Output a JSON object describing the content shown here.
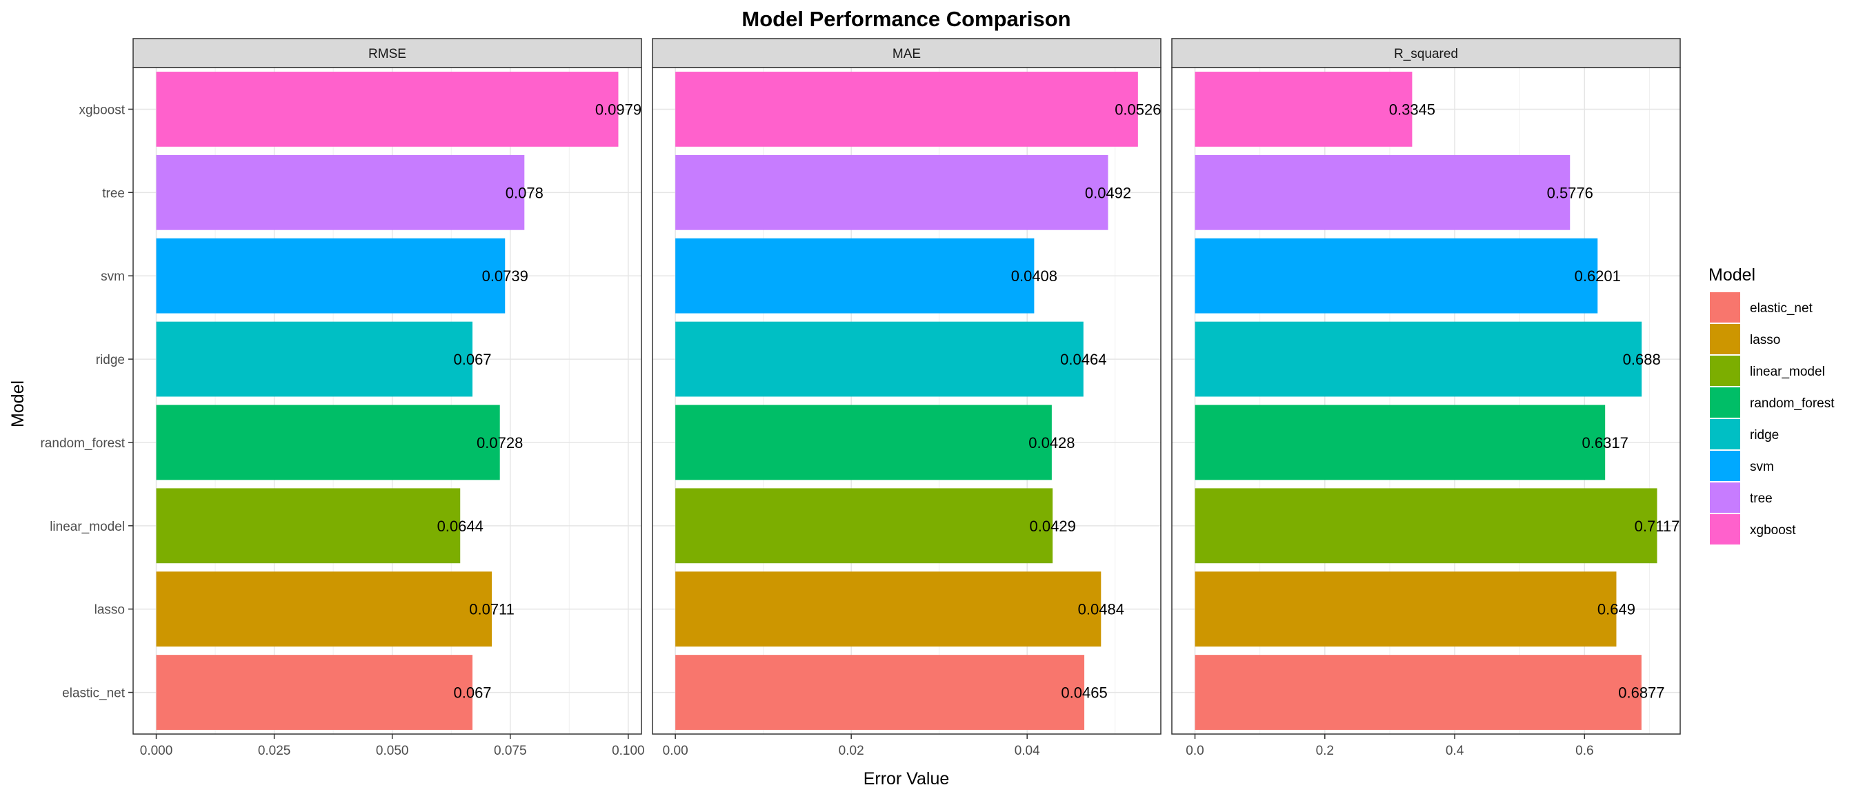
{
  "chart_data": {
    "type": "bar",
    "orientation": "horizontal",
    "title": "Model Performance Comparison",
    "xlabel": "Error Value",
    "ylabel": "Model",
    "grid": true,
    "legend_position": "right",
    "legend_title": "Model",
    "categories": [
      "elastic_net",
      "lasso",
      "linear_model",
      "random_forest",
      "ridge",
      "svm",
      "tree",
      "xgboost"
    ],
    "colors": {
      "elastic_net": "#F8766D",
      "lasso": "#CD9600",
      "linear_model": "#7CAE00",
      "random_forest": "#00BE67",
      "ridge": "#00BFC4",
      "svm": "#00A9FF",
      "tree": "#C77CFF",
      "xgboost": "#FF61CC"
    },
    "panels": [
      {
        "name": "RMSE",
        "xlim": [
          -0.0049,
          0.1028
        ],
        "ticks": [
          0.0,
          0.025,
          0.05,
          0.075,
          0.1
        ],
        "tick_labels": [
          "0.000",
          "0.025",
          "0.050",
          "0.075",
          "0.100"
        ],
        "values": [
          0.067,
          0.0711,
          0.0644,
          0.0728,
          0.067,
          0.0739,
          0.078,
          0.0979
        ],
        "value_labels": [
          "0.067",
          "0.0711",
          "0.0644",
          "0.0728",
          "0.067",
          "0.0739",
          "0.078",
          "0.0979"
        ]
      },
      {
        "name": "MAE",
        "xlim": [
          -0.0026,
          0.0552
        ],
        "ticks": [
          0.0,
          0.02,
          0.04
        ],
        "tick_labels": [
          "0.00",
          "0.02",
          "0.04"
        ],
        "values": [
          0.0465,
          0.0484,
          0.0429,
          0.0428,
          0.0464,
          0.0408,
          0.0492,
          0.0526
        ],
        "value_labels": [
          "0.0465",
          "0.0484",
          "0.0429",
          "0.0428",
          "0.0464",
          "0.0408",
          "0.0492",
          "0.0526"
        ]
      },
      {
        "name": "R_squared",
        "xlim": [
          -0.0356,
          0.7473
        ],
        "ticks": [
          0.0,
          0.2,
          0.4,
          0.6
        ],
        "tick_labels": [
          "0.0",
          "0.2",
          "0.4",
          "0.6"
        ],
        "values": [
          0.6877,
          0.649,
          0.7117,
          0.6317,
          0.688,
          0.6201,
          0.5776,
          0.3345
        ],
        "value_labels": [
          "0.6877",
          "0.649",
          "0.7117",
          "0.6317",
          "0.688",
          "0.6201",
          "0.5776",
          "0.3345"
        ]
      }
    ]
  }
}
